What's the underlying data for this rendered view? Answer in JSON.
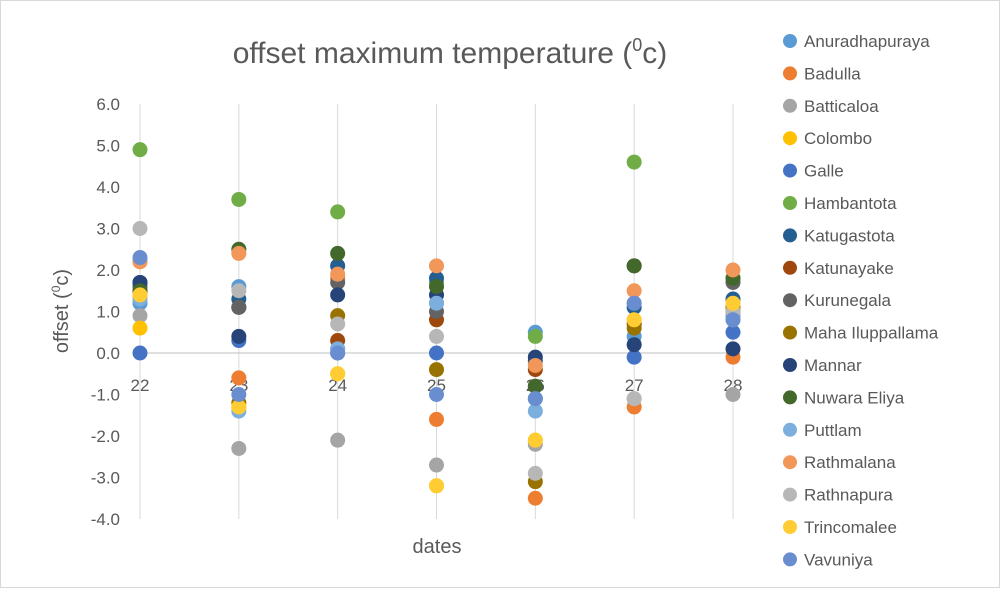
{
  "chart_data": {
    "type": "scatter",
    "title": "offset maximum temperature (",
    "title_sup": "0",
    "title_end": "c)",
    "xlabel": "dates",
    "ylabel": "offset (",
    "ylabel_sup": "0",
    "ylabel_end": "c)",
    "x_ticks": [
      "22",
      "23",
      "24",
      "25",
      "26",
      "27",
      "28"
    ],
    "y_ticks": [
      "6.0",
      "5.0",
      "4.0",
      "3.0",
      "2.0",
      "1.0",
      "0.0",
      "-1.0",
      "-2.0",
      "-3.0",
      "-4.0"
    ],
    "ylim": [
      -4,
      6
    ],
    "xlim": [
      22,
      28
    ],
    "grid": "vertical",
    "legend_position": "right",
    "series": [
      {
        "name": "Anuradhapuraya",
        "color": "#5B9BD5",
        "points": [
          [
            22,
            1.2
          ],
          [
            23,
            1.6
          ],
          [
            24,
            0.1
          ],
          [
            25,
            1.2
          ],
          [
            26,
            0.5
          ],
          [
            27,
            0.4
          ],
          [
            28,
            0.9
          ]
        ]
      },
      {
        "name": "Badulla",
        "color": "#ED7D31",
        "points": [
          [
            22,
            2.2
          ],
          [
            23,
            -0.6
          ],
          [
            24,
            1.8
          ],
          [
            25,
            -1.6
          ],
          [
            26,
            -3.5
          ],
          [
            27,
            -1.3
          ],
          [
            28,
            -0.1
          ]
        ]
      },
      {
        "name": "Batticaloa",
        "color": "#A5A5A5",
        "points": [
          [
            22,
            0.9
          ],
          [
            23,
            -2.3
          ],
          [
            24,
            -2.1
          ],
          [
            25,
            -2.7
          ],
          [
            26,
            -2.2
          ],
          [
            27,
            -1.1
          ],
          [
            28,
            -1.0
          ]
        ]
      },
      {
        "name": "Colombo",
        "color": "#FFC000",
        "points": [
          [
            22,
            0.6
          ],
          [
            23,
            -1.3
          ],
          [
            24,
            -0.5
          ],
          [
            25,
            -3.2
          ],
          [
            26,
            -2.1
          ],
          [
            27,
            0.8
          ],
          [
            28,
            1.2
          ]
        ]
      },
      {
        "name": "Galle",
        "color": "#4472C4",
        "points": [
          [
            22,
            0.0
          ],
          [
            23,
            0.3
          ],
          [
            24,
            0.0
          ],
          [
            25,
            0.0
          ],
          [
            26,
            -1.1
          ],
          [
            27,
            -0.1
          ],
          [
            28,
            0.5
          ]
        ]
      },
      {
        "name": "Hambantota",
        "color": "#70AD47",
        "points": [
          [
            22,
            4.9
          ],
          [
            23,
            3.7
          ],
          [
            24,
            3.4
          ],
          [
            25,
            1.7
          ],
          [
            26,
            0.4
          ],
          [
            27,
            4.6
          ],
          [
            28,
            1.8
          ]
        ]
      },
      {
        "name": "Katugastota",
        "color": "#255E91",
        "points": [
          [
            22,
            1.7
          ],
          [
            23,
            1.3
          ],
          [
            24,
            2.1
          ],
          [
            25,
            1.8
          ],
          [
            26,
            -0.2
          ],
          [
            27,
            1.1
          ],
          [
            28,
            1.3
          ]
        ]
      },
      {
        "name": "Katunayake",
        "color": "#9E480E",
        "points": [
          [
            22,
            1.5
          ],
          [
            23,
            1.1
          ],
          [
            24,
            0.3
          ],
          [
            25,
            0.8
          ],
          [
            26,
            -0.4
          ],
          [
            27,
            0.7
          ],
          [
            28,
            1.0
          ]
        ]
      },
      {
        "name": "Kurunegala",
        "color": "#636363",
        "points": [
          [
            22,
            1.6
          ],
          [
            23,
            1.1
          ],
          [
            24,
            1.7
          ],
          [
            25,
            1.0
          ],
          [
            26,
            -0.8
          ],
          [
            27,
            2.1
          ],
          [
            28,
            1.7
          ]
        ]
      },
      {
        "name": "Maha Iluppallama",
        "color": "#997300",
        "points": [
          [
            22,
            1.4
          ],
          [
            23,
            -1.2
          ],
          [
            24,
            0.9
          ],
          [
            25,
            -0.4
          ],
          [
            26,
            -3.1
          ],
          [
            27,
            0.6
          ],
          [
            28,
            1.1
          ]
        ]
      },
      {
        "name": "Mannar",
        "color": "#264478",
        "points": [
          [
            22,
            1.7
          ],
          [
            23,
            0.4
          ],
          [
            24,
            1.4
          ],
          [
            25,
            1.4
          ],
          [
            26,
            -0.1
          ],
          [
            27,
            0.2
          ],
          [
            28,
            0.1
          ]
        ]
      },
      {
        "name": "Nuwara Eliya",
        "color": "#43682B",
        "points": [
          [
            22,
            1.5
          ],
          [
            23,
            2.5
          ],
          [
            24,
            2.4
          ],
          [
            25,
            1.6
          ],
          [
            26,
            -0.8
          ],
          [
            27,
            2.1
          ],
          [
            28,
            1.8
          ]
        ]
      },
      {
        "name": "Puttlam",
        "color": "#7CAFDD",
        "points": [
          [
            22,
            1.3
          ],
          [
            23,
            -1.4
          ],
          [
            24,
            0.1
          ],
          [
            25,
            1.2
          ],
          [
            26,
            -1.4
          ],
          [
            27,
            1.2
          ],
          [
            28,
            0.8
          ]
        ]
      },
      {
        "name": "Rathmalana",
        "color": "#F1975A",
        "points": [
          [
            22,
            2.2
          ],
          [
            23,
            2.4
          ],
          [
            24,
            1.9
          ],
          [
            25,
            2.1
          ],
          [
            26,
            -0.3
          ],
          [
            27,
            1.5
          ],
          [
            28,
            2.0
          ]
        ]
      },
      {
        "name": "Rathnapura",
        "color": "#B7B7B7",
        "points": [
          [
            22,
            3.0
          ],
          [
            23,
            1.5
          ],
          [
            24,
            0.7
          ],
          [
            25,
            0.4
          ],
          [
            26,
            -2.9
          ],
          [
            27,
            -1.1
          ],
          [
            28,
            1.0
          ]
        ]
      },
      {
        "name": "Trincomalee",
        "color": "#FFCD33",
        "points": [
          [
            22,
            1.4
          ],
          [
            23,
            -1.3
          ],
          [
            24,
            -0.5
          ],
          [
            25,
            -3.2
          ],
          [
            26,
            -2.1
          ],
          [
            27,
            0.8
          ],
          [
            28,
            1.2
          ]
        ]
      },
      {
        "name": "Vavuniya",
        "color": "#698ED0",
        "points": [
          [
            22,
            2.3
          ],
          [
            23,
            -1.0
          ],
          [
            24,
            0.0
          ],
          [
            25,
            -1.0
          ],
          [
            26,
            -1.1
          ],
          [
            27,
            1.2
          ],
          [
            28,
            0.8
          ]
        ]
      }
    ]
  }
}
